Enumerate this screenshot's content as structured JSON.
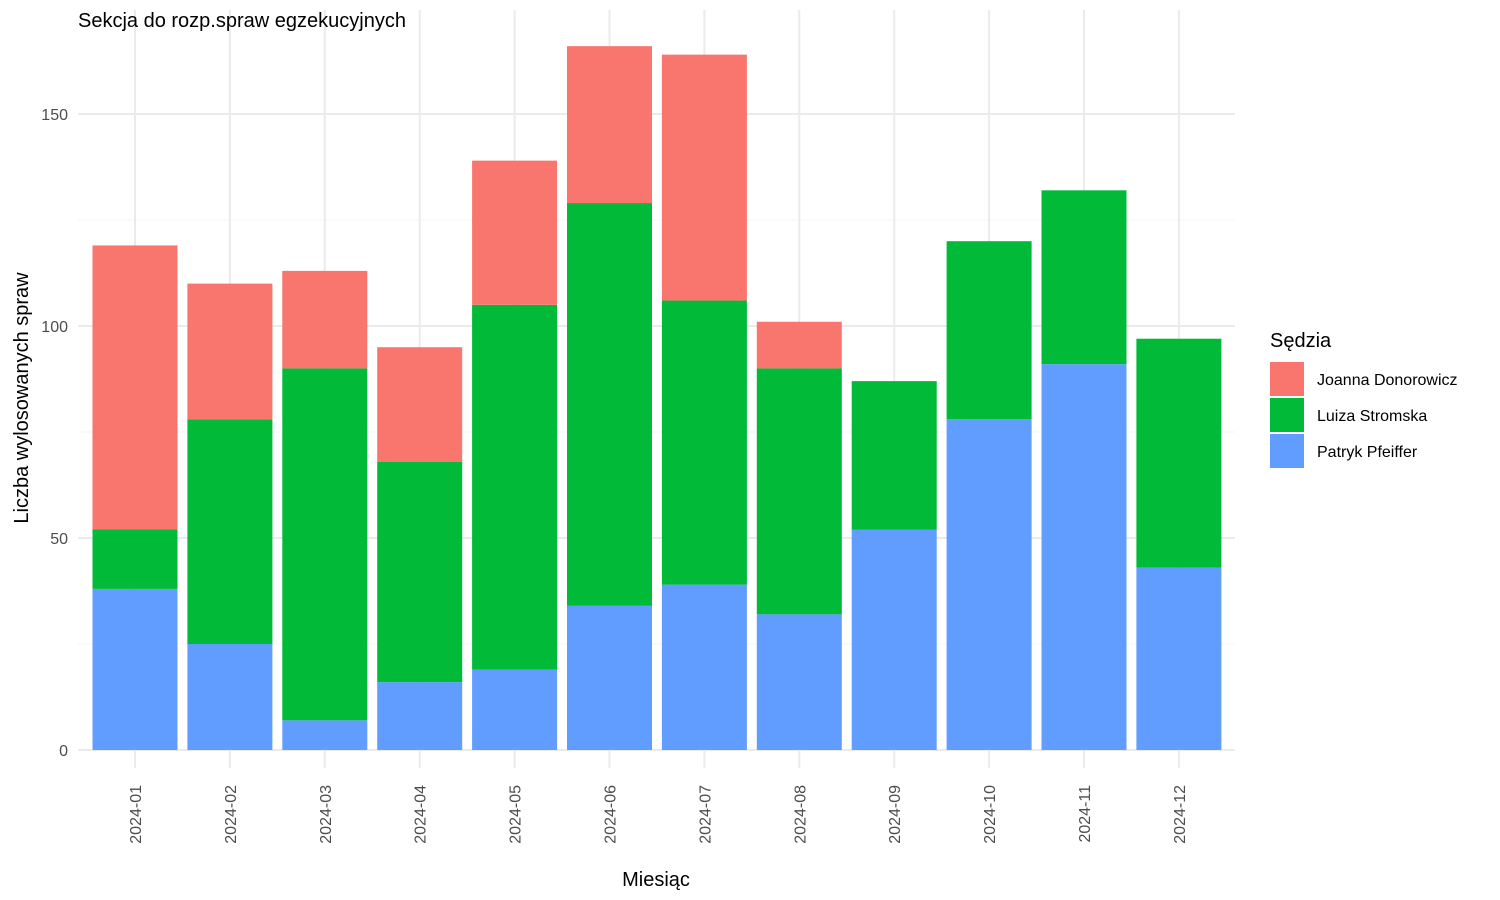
{
  "chart_data": {
    "type": "bar",
    "stacked": true,
    "title": "Sekcja do rozp.spraw egzekucyjnych",
    "xlabel": "Miesiąc",
    "ylabel": "Liczba wylosowanych spraw",
    "ylim": [
      0,
      166
    ],
    "yticks": [
      0,
      50,
      100,
      150
    ],
    "grid": true,
    "legend_title": "Sędzia",
    "legend_position": "right",
    "categories": [
      "2024-01",
      "2024-02",
      "2024-03",
      "2024-04",
      "2024-05",
      "2024-06",
      "2024-07",
      "2024-08",
      "2024-09",
      "2024-10",
      "2024-11",
      "2024-12"
    ],
    "series": [
      {
        "name": "Joanna Donorowicz",
        "color": "#F8766D",
        "values": [
          67,
          32,
          23,
          27,
          34,
          37,
          58,
          11,
          0,
          0,
          0,
          0
        ]
      },
      {
        "name": "Luiza Stromska",
        "color": "#00BA38",
        "values": [
          14,
          53,
          83,
          52,
          86,
          95,
          67,
          58,
          35,
          42,
          41,
          54
        ]
      },
      {
        "name": "Patryk Pfeiffer",
        "color": "#619CFF",
        "values": [
          38,
          25,
          7,
          16,
          19,
          34,
          39,
          32,
          52,
          78,
          91,
          43
        ]
      }
    ]
  }
}
